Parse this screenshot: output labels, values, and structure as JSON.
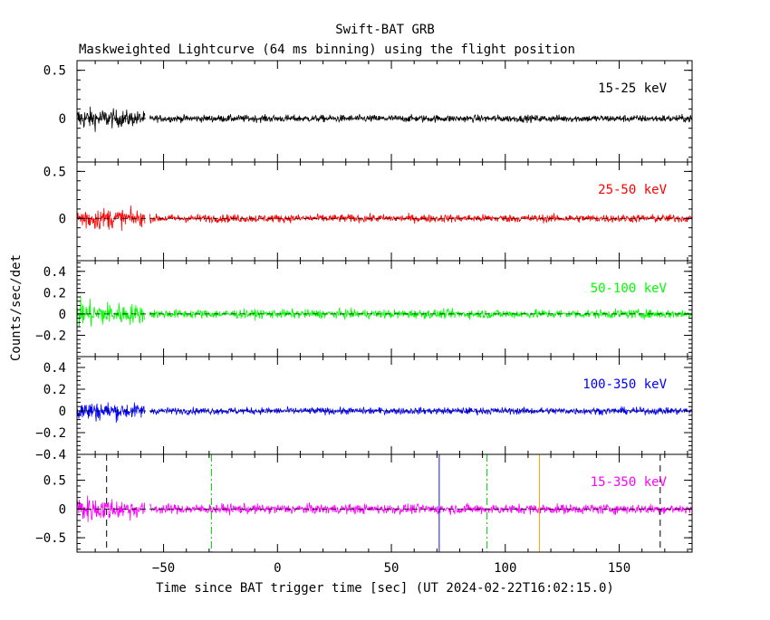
{
  "title": "Swift-BAT GRB",
  "subtitle": "Maskweighted Lightcurve (64 ms binning) using the flight position",
  "ylabel": "Counts/sec/det",
  "xlabel": "Time since BAT trigger time [sec] (UT 2024-02-22T16:02:15.0)",
  "colors": {
    "black": "#000000",
    "red": "#ff0000",
    "green": "#00ff00",
    "blue": "#0000ff",
    "magenta": "#ff00ff",
    "orange": "#ffa500",
    "navy": "#1a1aa8",
    "dash_green": "#00c800"
  },
  "chart_data": [
    {
      "type": "line",
      "band": "15-25 keV",
      "color": "#000000",
      "xlim": [
        -88,
        182
      ],
      "ylim": [
        -0.45,
        0.6
      ],
      "yticks": [
        0.5,
        0
      ],
      "ytick_labels": [
        "0.5",
        "0"
      ],
      "noise_amplitude_early": 0.07,
      "noise_amplitude_late": 0.035,
      "data_gap": [
        -58,
        -56
      ],
      "grid": false
    },
    {
      "type": "line",
      "band": "25-50 keV",
      "color": "#ff0000",
      "xlim": [
        -88,
        182
      ],
      "ylim": [
        -0.45,
        0.6
      ],
      "yticks": [
        0.5,
        0
      ],
      "ytick_labels": [
        "0.5",
        "0"
      ],
      "noise_amplitude_early": 0.08,
      "noise_amplitude_late": 0.04,
      "data_gap": [
        -58,
        -56
      ],
      "grid": false
    },
    {
      "type": "line",
      "band": "50-100 keV",
      "color": "#00ff00",
      "xlim": [
        -88,
        182
      ],
      "ylim": [
        -0.4,
        0.5
      ],
      "yticks": [
        0.4,
        0.2,
        0,
        -0.2
      ],
      "ytick_labels": [
        "0.4",
        "0.2",
        "0",
        "−0.2"
      ],
      "noise_amplitude_early": 0.08,
      "noise_amplitude_late": 0.04,
      "data_gap": [
        -58,
        -56
      ],
      "grid": false
    },
    {
      "type": "line",
      "band": "100-350 keV",
      "color": "#0000ff",
      "xlim": [
        -88,
        182
      ],
      "ylim": [
        -0.4,
        0.5
      ],
      "yticks": [
        0.4,
        0.2,
        0,
        -0.2,
        -0.4
      ],
      "ytick_labels": [
        "0.4",
        "0.2",
        "0",
        "−0.2",
        "−0.4"
      ],
      "noise_amplitude_early": 0.06,
      "noise_amplitude_late": 0.03,
      "data_gap": [
        -58,
        -56
      ],
      "grid": false
    },
    {
      "type": "line",
      "band": "15-350 keV",
      "color": "#ff00ff",
      "xlim": [
        -88,
        182
      ],
      "ylim": [
        -0.75,
        0.95
      ],
      "yticks": [
        0.5,
        0,
        -0.5
      ],
      "ytick_labels": [
        "0.5",
        "0",
        "−0.5"
      ],
      "noise_amplitude_early": 0.14,
      "noise_amplitude_late": 0.08,
      "data_gap": [
        -58,
        -56
      ],
      "grid": false,
      "xticks": [
        -50,
        0,
        50,
        100,
        150
      ],
      "xtick_labels": [
        "−50",
        "0",
        "50",
        "100",
        "150"
      ],
      "vertical_markers": [
        {
          "x": -75,
          "style": "dashed",
          "color": "#000000"
        },
        {
          "x": -29,
          "style": "dashdot",
          "color": "#00c800"
        },
        {
          "x": 71,
          "style": "solid",
          "color": "#1a1aa8"
        },
        {
          "x": 92,
          "style": "dashdot",
          "color": "#00c800"
        },
        {
          "x": 115,
          "style": "solid",
          "color": "#ffa500"
        },
        {
          "x": 168,
          "style": "dashed",
          "color": "#000000"
        }
      ]
    }
  ]
}
